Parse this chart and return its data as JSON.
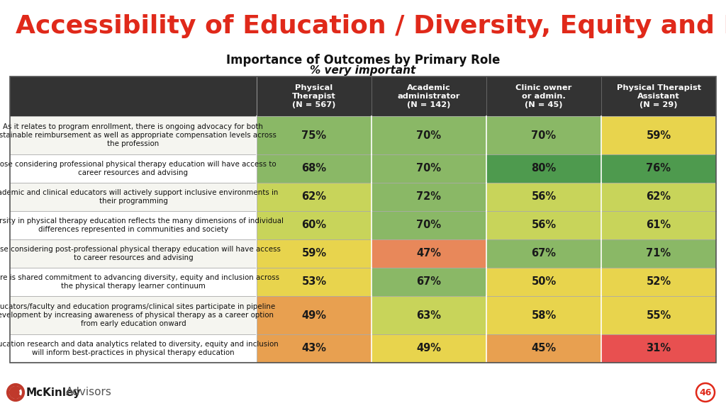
{
  "title": "Accessibility of Education / Diversity, Equity and Inclusion",
  "subtitle1": "Importance of Outcomes by Primary Role",
  "subtitle2": "% very important",
  "col_headers": [
    "Physical\nTherapist\n(N = 567)",
    "Academic\nadministrator\n(N = 142)",
    "Clinic owner\nor admin.\n(N = 45)",
    "Physical Therapist\nAssistant\n(N = 29)"
  ],
  "row_labels": [
    "As it relates to program enrollment, there is ongoing advocacy for both\nsustainable reimbursement as well as appropriate compensation levels across\nthe profession",
    "Those considering professional physical therapy education will have access to\ncareer resources and advising",
    "Academic and clinical educators will actively support inclusive environments in\ntheir programming",
    "Diversity in physical therapy education reflects the many dimensions of individual\ndifferences represented in communities and society",
    "Those considering post-professional physical therapy education will have access\nto career resources and advising",
    "There is shared commitment to advancing diversity, equity and inclusion across\nthe physical therapy learner continuum",
    "Educators/faculty and education programs/clinical sites participate in pipeline\ndevelopment by increasing awareness of physical therapy as a career option\nfrom early education onward",
    "Education research and data analytics related to diversity, equity and inclusion\nwill inform best-practices in physical therapy education"
  ],
  "values": [
    [
      75,
      70,
      70,
      59
    ],
    [
      68,
      70,
      80,
      76
    ],
    [
      62,
      72,
      56,
      62
    ],
    [
      60,
      70,
      56,
      61
    ],
    [
      59,
      47,
      67,
      71
    ],
    [
      53,
      67,
      50,
      52
    ],
    [
      49,
      63,
      58,
      55
    ],
    [
      43,
      49,
      45,
      31
    ]
  ],
  "cell_colors": [
    [
      "#8ab866",
      "#8ab866",
      "#8ab866",
      "#e8d44d"
    ],
    [
      "#8ab866",
      "#8ab866",
      "#4e9a4e",
      "#4e9a4e"
    ],
    [
      "#c8d45a",
      "#8ab866",
      "#c8d45a",
      "#c8d45a"
    ],
    [
      "#c8d45a",
      "#8ab866",
      "#c8d45a",
      "#c8d45a"
    ],
    [
      "#e8d44d",
      "#e8885a",
      "#8ab866",
      "#8ab866"
    ],
    [
      "#e8d44d",
      "#8ab866",
      "#e8d44d",
      "#e8d44d"
    ],
    [
      "#e8a050",
      "#c8d45a",
      "#e8d44d",
      "#e8d44d"
    ],
    [
      "#e8a050",
      "#e8d44d",
      "#e8a050",
      "#e85050"
    ]
  ],
  "bg_color": "#ffffff",
  "title_color": "#e0291a",
  "header_bg": "#333333",
  "header_text": "#ffffff",
  "row_label_bg_even": "#f5f5f0",
  "row_label_bg_odd": "#ffffff",
  "footer_bold": "McKinley",
  "footer_normal": "Advisors",
  "page_num": "46",
  "page_circle_color": "#e0291a",
  "logo_color": "#c0392b"
}
